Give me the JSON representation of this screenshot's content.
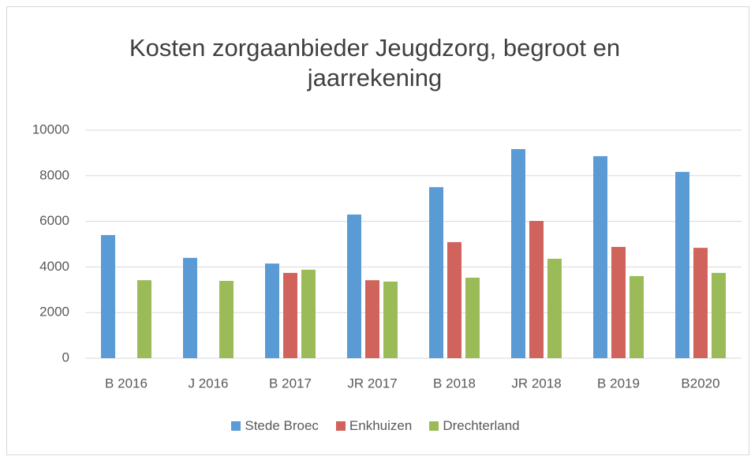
{
  "chart_data": {
    "type": "bar",
    "title": "Kosten zorgaanbieder Jeugdzorg, begroot en jaarrekening",
    "categories": [
      "B 2016",
      "J 2016",
      "B 2017",
      "JR 2017",
      "B 2018",
      "JR 2018",
      "B 2019",
      "B2020"
    ],
    "series": [
      {
        "name": "Stede Broec",
        "color": "#5b9bd5",
        "values": [
          5400,
          4400,
          4150,
          6300,
          7500,
          9170,
          8860,
          8170
        ]
      },
      {
        "name": "Enkhuizen",
        "color": "#d0635c",
        "values": [
          null,
          null,
          3740,
          3420,
          5090,
          6020,
          4880,
          4840
        ]
      },
      {
        "name": "Drechterland",
        "color": "#9bbb59",
        "values": [
          3420,
          3390,
          3880,
          3360,
          3530,
          4360,
          3600,
          3740
        ]
      }
    ],
    "ylim": [
      0,
      10000
    ],
    "yticks": [
      0,
      2000,
      4000,
      6000,
      8000,
      10000
    ],
    "grid": true,
    "legend": "bottom"
  }
}
